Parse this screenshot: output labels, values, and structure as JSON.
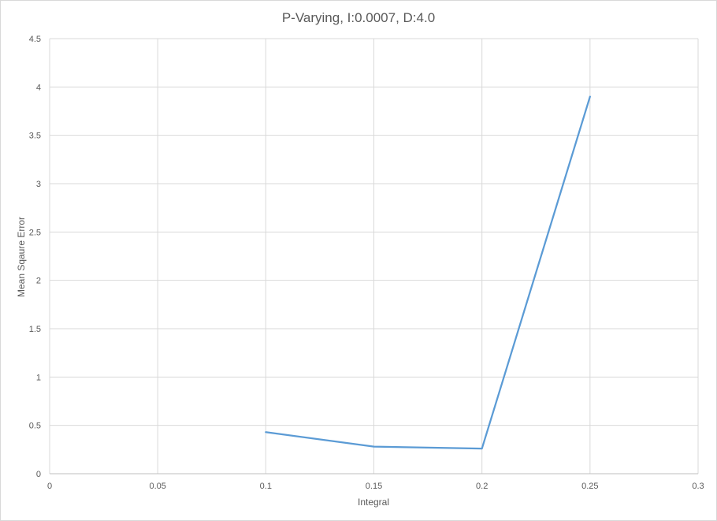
{
  "chart_data": {
    "type": "line",
    "title": "P-Varying, I:0.0007, D:4.0",
    "xlabel": "Integral",
    "ylabel": "Mean Sqaure Error",
    "xlim": [
      0,
      0.3
    ],
    "ylim": [
      0,
      4.5
    ],
    "x_ticks": [
      "0",
      "0.05",
      "0.1",
      "0.15",
      "0.2",
      "0.25",
      "0.3"
    ],
    "y_ticks": [
      "0",
      "0.5",
      "1",
      "1.5",
      "2",
      "2.5",
      "3",
      "3.5",
      "4",
      "4.5"
    ],
    "grid": true,
    "legend": "none",
    "series": [
      {
        "color": "#5b9bd5",
        "x": [
          0.1,
          0.15,
          0.2,
          0.25
        ],
        "y": [
          0.43,
          0.28,
          0.26,
          3.9
        ]
      }
    ]
  }
}
